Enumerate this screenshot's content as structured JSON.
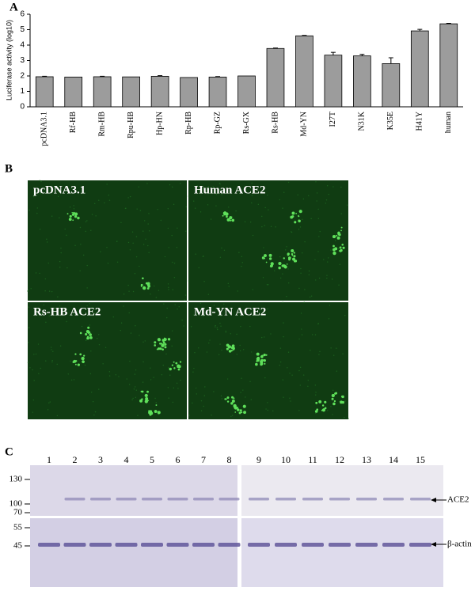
{
  "chart_data": {
    "type": "bar",
    "y_label": "Luciferase activity (log10)",
    "categories": [
      "pcDNA3.1",
      "Rf-HB",
      "Rm-HB",
      "Rpu-HB",
      "Hp-HN",
      "Rp-HB",
      "Rp-GZ",
      "Rs-GX",
      "Rs-HB",
      "Md-YN",
      "I27T",
      "N31K",
      "K35E",
      "H41Y",
      "human"
    ],
    "values": [
      1.95,
      1.93,
      1.95,
      1.94,
      1.98,
      1.9,
      1.93,
      2.0,
      3.78,
      4.6,
      3.35,
      3.3,
      2.8,
      4.92,
      5.38
    ],
    "errors": [
      0.03,
      0,
      0.03,
      0,
      0.04,
      0,
      0.03,
      0,
      0.03,
      0.03,
      0.18,
      0.1,
      0.38,
      0.1,
      0.03
    ],
    "color": "#9c9c9c",
    "ylim": [
      0,
      6
    ],
    "yticks": [
      0,
      1,
      2,
      3,
      4,
      5,
      6
    ]
  },
  "panel_labels": [
    "A",
    "B",
    "C"
  ],
  "images": [
    "pcDNA3.1",
    "Human ACE2",
    "Rs-HB ACE2",
    "Md-YN ACE2"
  ],
  "blot": {
    "lanes": [
      "1",
      "2",
      "3",
      "4",
      "5",
      "6",
      "7",
      "8",
      "9",
      "10",
      "11",
      "12",
      "13",
      "14",
      "15"
    ],
    "markers": [
      "130",
      "100",
      "70",
      "55",
      "45"
    ],
    "bands": [
      "ACE2",
      "β-actin"
    ]
  }
}
